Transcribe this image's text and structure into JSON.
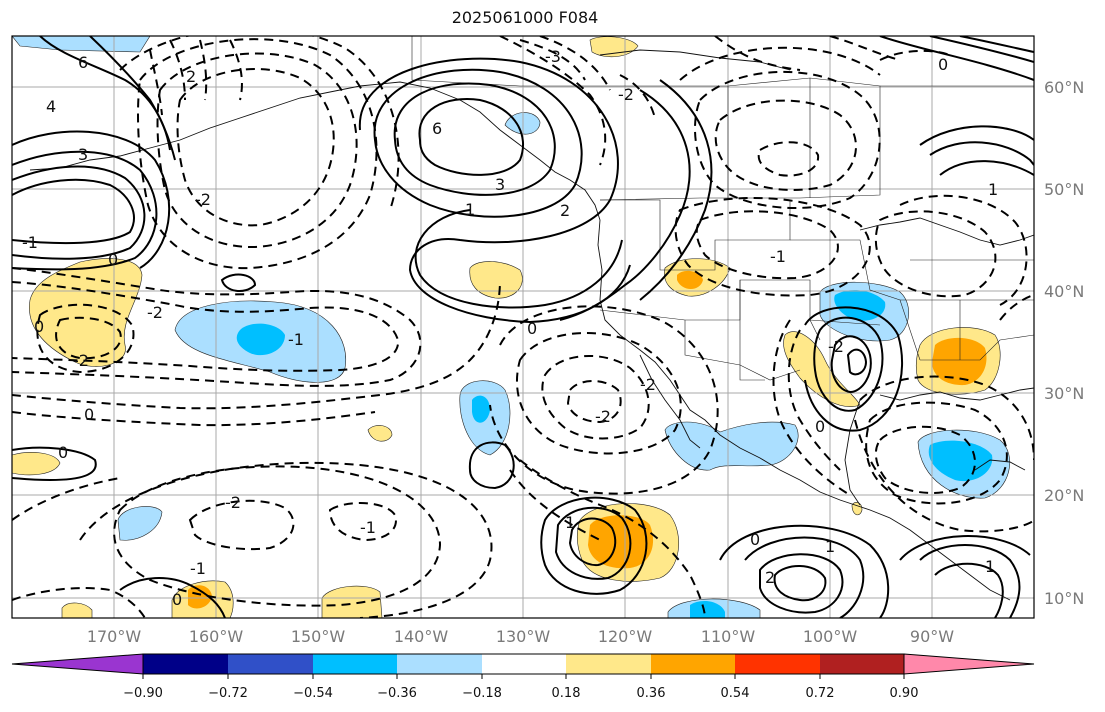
{
  "title": "2025061000 F084",
  "latitude_labels": [
    "60°N",
    "50°N",
    "40°N",
    "30°N",
    "20°N",
    "10°N"
  ],
  "longitude_labels": [
    "170°W",
    "160°W",
    "150°W",
    "140°W",
    "130°W",
    "120°W",
    "110°W",
    "100°W",
    "90°W"
  ],
  "colorbar": {
    "tick_labels": [
      "−0.90",
      "−0.72",
      "−0.54",
      "−0.36",
      "−0.18",
      "0.18",
      "0.36",
      "0.54",
      "0.72",
      "0.90"
    ],
    "colors": [
      "#9a35d0",
      "#000088",
      "#3050c8",
      "#00bfff",
      "#abdfff",
      "#ffffff",
      "#ffe88a",
      "#ffa500",
      "#ff3300",
      "#b02020",
      "#ff88aa"
    ]
  },
  "colors": {
    "light_blue": "#abdfff",
    "blue": "#00bfff",
    "light_yellow": "#ffe88a",
    "orange": "#ffa500",
    "grid": "#a8a8a8"
  },
  "contour_labels": [
    {
      "text": "6"
    },
    {
      "text": "4"
    },
    {
      "text": "3"
    },
    {
      "text": "2"
    },
    {
      "text": "6"
    },
    {
      "text": "3"
    },
    {
      "text": "1"
    },
    {
      "text": "2"
    },
    {
      "text": "-3"
    },
    {
      "text": "-2"
    },
    {
      "text": "0"
    },
    {
      "text": "1"
    },
    {
      "text": "0"
    },
    {
      "text": "-1"
    },
    {
      "text": "-2"
    },
    {
      "text": "-2"
    },
    {
      "text": "0"
    },
    {
      "text": "0"
    },
    {
      "text": "0"
    },
    {
      "text": "-2"
    },
    {
      "text": "-2"
    },
    {
      "text": "-1"
    },
    {
      "text": "0"
    },
    {
      "text": "-2"
    },
    {
      "text": "1"
    },
    {
      "text": "0"
    },
    {
      "text": "1"
    },
    {
      "text": "2"
    },
    {
      "text": "1"
    },
    {
      "text": "-2"
    },
    {
      "text": "-1"
    },
    {
      "text": "0"
    },
    {
      "text": "-1"
    },
    {
      "text": "-1"
    },
    {
      "text": "0"
    },
    {
      "text": "-2"
    }
  ]
}
